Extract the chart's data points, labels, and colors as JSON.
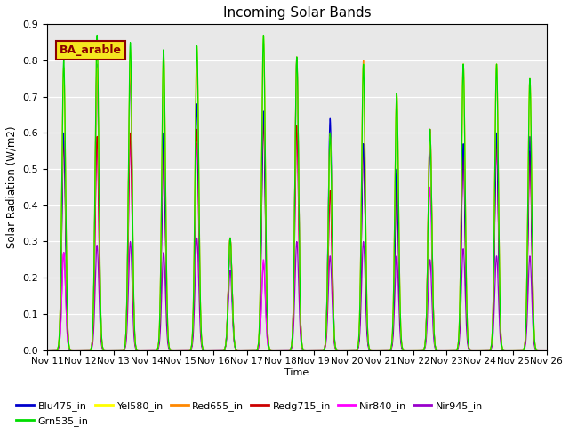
{
  "title": "Incoming Solar Bands",
  "ylabel": "Solar Radiation (W/m2)",
  "xlabel": "Time",
  "ylim": [
    0.0,
    0.9
  ],
  "yticks": [
    0.0,
    0.1,
    0.2,
    0.3,
    0.4,
    0.5,
    0.6,
    0.7,
    0.8,
    0.9
  ],
  "background_color": "#e8e8e8",
  "fig_background": "#ffffff",
  "annotation_text": "BA_arable",
  "annotation_bg": "#f5e620",
  "annotation_border": "#8b0000",
  "series": [
    {
      "name": "Blu475_in",
      "color": "#0000cc"
    },
    {
      "name": "Grn535_in",
      "color": "#00dd00"
    },
    {
      "name": "Yel580_in",
      "color": "#ffff00"
    },
    {
      "name": "Red655_in",
      "color": "#ff8800"
    },
    {
      "name": "Redg715_in",
      "color": "#cc0000"
    },
    {
      "name": "Nir840_in",
      "color": "#ff00ff"
    },
    {
      "name": "Nir945_in",
      "color": "#9900cc"
    }
  ],
  "day_peaks": [
    {
      "day": 0,
      "peaks": [
        0.6,
        0.8,
        0.78,
        0.78,
        0.58,
        0.27,
        0.27
      ]
    },
    {
      "day": 1,
      "peaks": [
        0.79,
        0.87,
        0.86,
        0.78,
        0.59,
        0.56,
        0.29
      ]
    },
    {
      "day": 2,
      "peaks": [
        0.77,
        0.85,
        0.83,
        0.79,
        0.6,
        0.57,
        0.3
      ]
    },
    {
      "day": 3,
      "peaks": [
        0.6,
        0.83,
        0.82,
        0.82,
        0.59,
        0.57,
        0.27
      ]
    },
    {
      "day": 4,
      "peaks": [
        0.68,
        0.84,
        0.84,
        0.81,
        0.61,
        0.57,
        0.31
      ]
    },
    {
      "day": 5,
      "peaks": [
        0.29,
        0.31,
        0.31,
        0.31,
        0.31,
        0.31,
        0.22
      ]
    },
    {
      "day": 6,
      "peaks": [
        0.66,
        0.87,
        0.87,
        0.85,
        0.63,
        0.25,
        0.24
      ]
    },
    {
      "day": 7,
      "peaks": [
        0.8,
        0.81,
        0.8,
        0.81,
        0.62,
        0.6,
        0.3
      ]
    },
    {
      "day": 8,
      "peaks": [
        0.64,
        0.6,
        0.59,
        0.6,
        0.44,
        0.44,
        0.26
      ]
    },
    {
      "day": 9,
      "peaks": [
        0.57,
        0.79,
        0.79,
        0.8,
        0.57,
        0.56,
        0.3
      ]
    },
    {
      "day": 10,
      "peaks": [
        0.5,
        0.71,
        0.71,
        0.71,
        0.49,
        0.45,
        0.26
      ]
    },
    {
      "day": 11,
      "peaks": [
        0.56,
        0.61,
        0.6,
        0.61,
        0.61,
        0.45,
        0.25
      ]
    },
    {
      "day": 12,
      "peaks": [
        0.57,
        0.79,
        0.79,
        0.79,
        0.56,
        0.53,
        0.28
      ]
    },
    {
      "day": 13,
      "peaks": [
        0.6,
        0.79,
        0.79,
        0.79,
        0.59,
        0.55,
        0.26
      ]
    },
    {
      "day": 14,
      "peaks": [
        0.59,
        0.75,
        0.75,
        0.75,
        0.55,
        0.52,
        0.26
      ]
    }
  ],
  "xtick_labels": [
    "Nov 11",
    "Nov 12",
    "Nov 13",
    "Nov 14",
    "Nov 15",
    "Nov 16",
    "Nov 17",
    "Nov 18",
    "Nov 19",
    "Nov 20",
    "Nov 21",
    "Nov 22",
    "Nov 23",
    "Nov 24",
    "Nov 25",
    "Nov 26"
  ],
  "total_days": 15
}
